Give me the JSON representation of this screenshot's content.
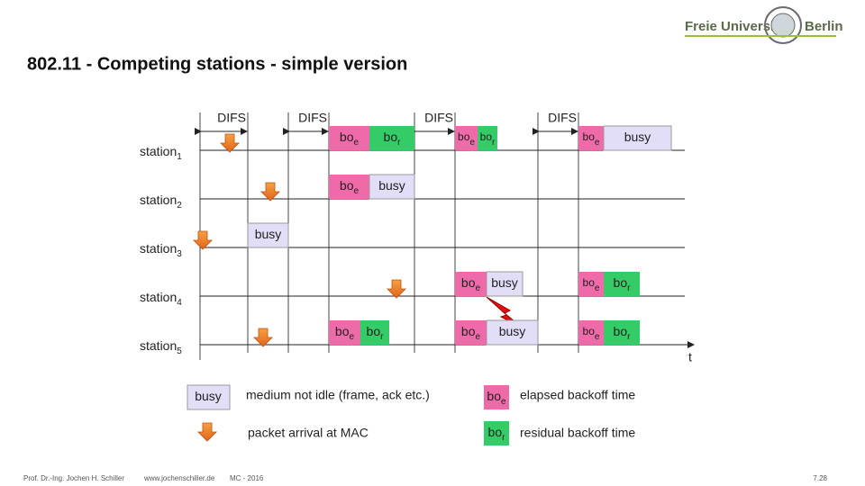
{
  "header": {
    "logo_left": "Freie Universität",
    "logo_right": "Berlin",
    "title": "802.11 - Competing stations - simple version"
  },
  "difs": [
    "DIFS",
    "DIFS",
    "DIFS",
    "DIFS"
  ],
  "stations": [
    {
      "name": "station",
      "sub": "1",
      "boxes": [
        {
          "label": "bo",
          "sub": "e"
        },
        {
          "label": "bo",
          "sub": "r"
        },
        {
          "label": "bo",
          "sub": "e"
        },
        {
          "label": "bo",
          "sub": "r"
        },
        {
          "label": "bo",
          "sub": "e"
        },
        {
          "label": "busy"
        }
      ]
    },
    {
      "name": "station",
      "sub": "2",
      "boxes": [
        {
          "label": "bo",
          "sub": "e"
        },
        {
          "label": "busy"
        }
      ]
    },
    {
      "name": "station",
      "sub": "3",
      "boxes": [
        {
          "label": "busy"
        }
      ]
    },
    {
      "name": "station",
      "sub": "4",
      "boxes": [
        {
          "label": "bo",
          "sub": "e"
        },
        {
          "label": "busy"
        },
        {
          "label": "bo",
          "sub": "e"
        },
        {
          "label": "bo",
          "sub": "r"
        }
      ]
    },
    {
      "name": "station",
      "sub": "5",
      "boxes": [
        {
          "label": "bo",
          "sub": "e"
        },
        {
          "label": "bo",
          "sub": "r"
        },
        {
          "label": "bo",
          "sub": "e"
        },
        {
          "label": "busy"
        },
        {
          "label": "bo",
          "sub": "e"
        },
        {
          "label": "bo",
          "sub": "r"
        }
      ]
    }
  ],
  "time_label": "t",
  "legend": [
    {
      "box": {
        "label": "busy"
      },
      "text": "medium not idle (frame, ack etc.)"
    },
    {
      "text": "packet arrival at MAC"
    },
    {
      "box": {
        "label": "bo",
        "sub": "e"
      },
      "text": "elapsed backoff time"
    },
    {
      "box": {
        "label": "bo",
        "sub": "r"
      },
      "text": "residual backoff time"
    }
  ],
  "footer": {
    "author": "Prof. Dr.-Ing. Jochen H. Schiller",
    "url": "www.jochenschiller.de",
    "course": "MC - 2016",
    "page": "7.28"
  }
}
